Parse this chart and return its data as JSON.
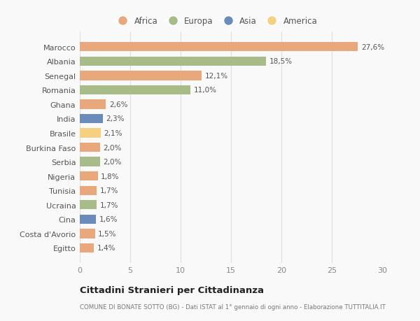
{
  "countries": [
    "Egitto",
    "Costa d'Avorio",
    "Cina",
    "Ucraina",
    "Tunisia",
    "Nigeria",
    "Serbia",
    "Burkina Faso",
    "Brasile",
    "India",
    "Ghana",
    "Romania",
    "Senegal",
    "Albania",
    "Marocco"
  ],
  "values": [
    1.4,
    1.5,
    1.6,
    1.7,
    1.7,
    1.8,
    2.0,
    2.0,
    2.1,
    2.3,
    2.6,
    11.0,
    12.1,
    18.5,
    27.6
  ],
  "labels": [
    "1,4%",
    "1,5%",
    "1,6%",
    "1,7%",
    "1,7%",
    "1,8%",
    "2,0%",
    "2,0%",
    "2,1%",
    "2,3%",
    "2,6%",
    "11,0%",
    "12,1%",
    "18,5%",
    "27,6%"
  ],
  "colors": [
    "#e8a87c",
    "#e8a87c",
    "#6b8cba",
    "#a8bc8a",
    "#e8a87c",
    "#e8a87c",
    "#a8bc8a",
    "#e8a87c",
    "#f5d080",
    "#6b8cba",
    "#e8a87c",
    "#a8bc8a",
    "#e8a87c",
    "#a8bc8a",
    "#e8a87c"
  ],
  "legend_labels": [
    "Africa",
    "Europa",
    "Asia",
    "America"
  ],
  "legend_colors": [
    "#e8a87c",
    "#a8bc8a",
    "#6b8cba",
    "#f5d080"
  ],
  "title": "Cittadini Stranieri per Cittadinanza",
  "subtitle": "COMUNE DI BONATE SOTTO (BG) - Dati ISTAT al 1° gennaio di ogni anno - Elaborazione TUTTITALIA.IT",
  "xlim": [
    0,
    30
  ],
  "xticks": [
    0,
    5,
    10,
    15,
    20,
    25,
    30
  ],
  "bg_color": "#f9f9f9",
  "grid_color": "#e0e0e0"
}
